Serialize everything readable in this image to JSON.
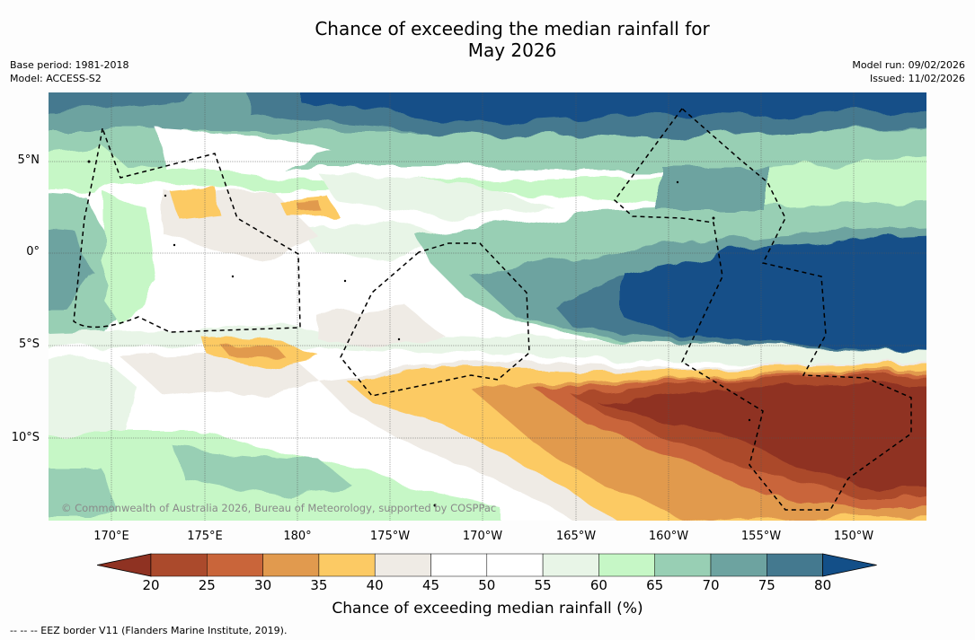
{
  "title_line1": "Chance of exceeding the median rainfall for",
  "title_line2": "May 2026",
  "base_period": "Base period: 1981-2018",
  "model": "Model: ACCESS-S2",
  "model_run": "Model run: 09/02/2026",
  "issued": "Issued: 11/02/2026",
  "copyright": "© Commonwealth of Australia 2026, Bureau of Meteorology, supported by COSPPac",
  "lat_labels": [
    "5°N",
    "0°",
    "5°S",
    "10°S"
  ],
  "lon_labels": [
    "170°E",
    "175°E",
    "180°",
    "175°W",
    "170°W",
    "165°W",
    "160°W",
    "155°W",
    "150°W"
  ],
  "colorbar": {
    "label": "Chance of exceeding median rainfall (%)",
    "ticks": [
      "20",
      "25",
      "30",
      "35",
      "40",
      "45",
      "50",
      "55",
      "60",
      "65",
      "70",
      "75",
      "80"
    ],
    "colors": [
      "#8f3222",
      "#ab4a2c",
      "#c9653a",
      "#e19a4e",
      "#fcca64",
      "#efebe5",
      "#ffffff",
      "#ffffff",
      "#e8f5e7",
      "#c6f7c6",
      "#98cfb4",
      "#6da3a0",
      "#44798f",
      "#134f88"
    ]
  },
  "eez_legend": "--  --  -- EEZ border V11 (Flanders Marine Institute, 2019)."
}
